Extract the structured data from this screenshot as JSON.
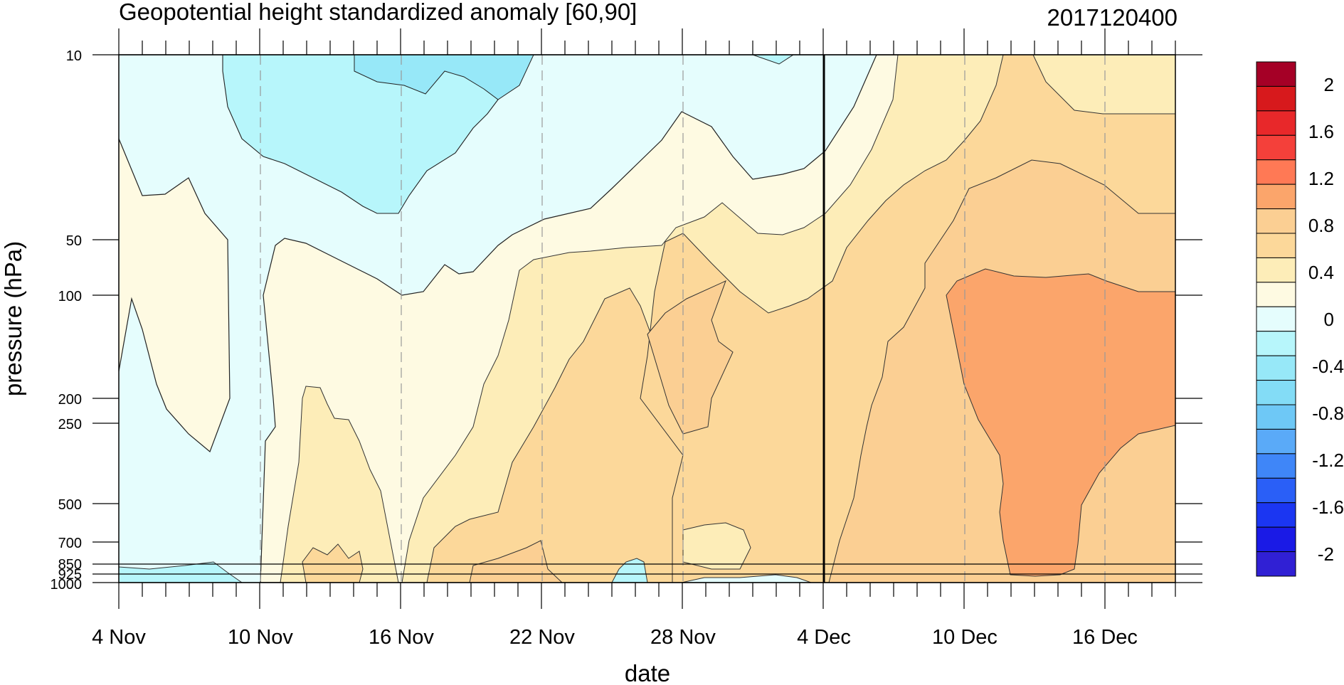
{
  "chart_data": {
    "type": "heatmap",
    "title": "Geopotential height standardized anomaly [60,90]",
    "right_label": "2017120400",
    "xlabel": "date",
    "ylabel": "pressure (hPa)",
    "x_ticks": [
      "4 Nov",
      "10 Nov",
      "16 Nov",
      "22 Nov",
      "28 Nov",
      "4 Dec",
      "10 Dec",
      "16 Dec"
    ],
    "x_range": [
      "2017-11-04",
      "2017-12-19"
    ],
    "analysis_date_line": "2017-12-04",
    "y_ticks": [
      "10",
      "50",
      "100",
      "200",
      "250",
      "500",
      "700",
      "850",
      "925",
      "1000"
    ],
    "y_range": [
      1000,
      10
    ],
    "y_scale": "log",
    "colorbar_labels": [
      "2",
      "1.6",
      "1.2",
      "0.8",
      "0.4",
      "0",
      "-0.4",
      "-0.8",
      "-1.2",
      "-1.6",
      "-2"
    ],
    "contour_levels": [
      -2,
      -1.8,
      -1.6,
      -1.4,
      -1.2,
      -1,
      -0.8,
      -0.6,
      -0.4,
      -0.2,
      0,
      0.2,
      0.4,
      0.6,
      0.8,
      1,
      1.2,
      1.4,
      1.6,
      1.8,
      2
    ],
    "colorbar_colors": [
      "#a50026",
      "#d7191c",
      "#e8282a",
      "#f4403a",
      "#ff7955",
      "#fba56b",
      "#fbcf93",
      "#fcd89a",
      "#fdedb8",
      "#fefae2",
      "#e5fdfd",
      "#b7f6fb",
      "#97e8f8",
      "#83dcf6",
      "#6ec8f6",
      "#5aaaf8",
      "#3f86f8",
      "#2a5ff7",
      "#1b36f2",
      "#1a1ae6",
      "#3020d4"
    ],
    "panels": [
      {
        "name": "anomaly -0.4 to -0.2 band (mid-Nov, upper levels)",
        "color": "#b7f6fb"
      },
      {
        "name": "anomaly -0.6 to -0.4 core (16–22 Nov, 10–20 hPa)",
        "color": "#97e8f8"
      },
      {
        "name": "anomaly 0 to 0.2 (lower troposphere early Nov / late Nov)",
        "color": "#fefae2"
      },
      {
        "name": "anomaly 0.2 to 0.4",
        "color": "#fdedb8"
      },
      {
        "name": "anomaly 0.4 to 0.6",
        "color": "#fcd89a"
      },
      {
        "name": "anomaly 0.6 to 0.8",
        "color": "#fbcf93"
      },
      {
        "name": "anomaly 0.8 to 1.0 (10–18 Dec, 70–850 hPa)",
        "color": "#fba56b"
      }
    ]
  }
}
